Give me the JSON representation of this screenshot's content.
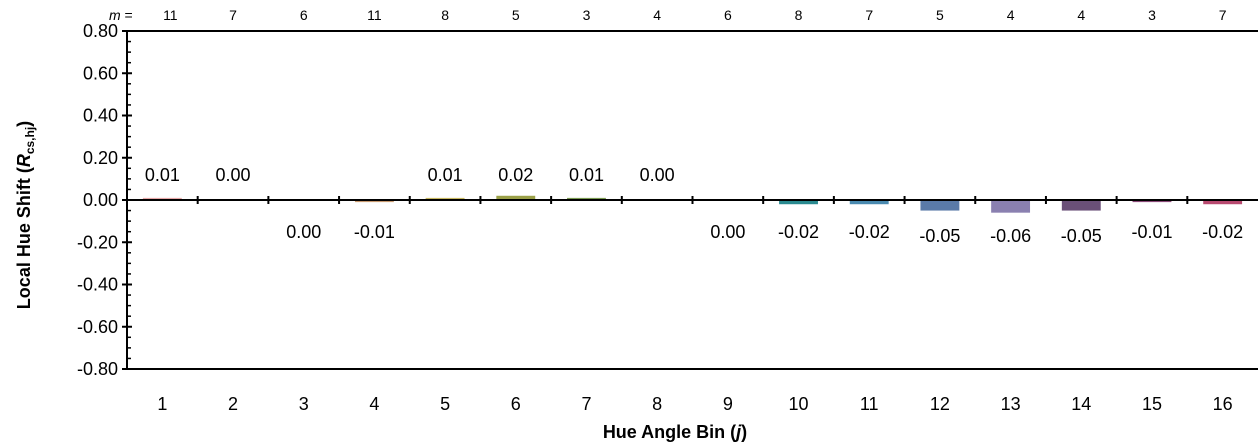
{
  "chart_data": {
    "type": "bar",
    "title": "",
    "xlabel": "Hue Angle Bin (j)",
    "xlabel_parts": {
      "main": "Hue Angle Bin (",
      "var": "j",
      "end": ")"
    },
    "ylabel": "Local Hue Shift (Rcs,hj)",
    "ylabel_parts": {
      "main": "Local Hue Shift (",
      "var": "R",
      "sub": "cs,hj",
      "end": ")"
    },
    "ylim": [
      -0.8,
      0.8
    ],
    "y_ticks": [
      "0.80",
      "0.60",
      "0.40",
      "0.20",
      "0.00",
      "-0.20",
      "-0.40",
      "-0.60",
      "-0.80"
    ],
    "y_tick_values": [
      0.8,
      0.6,
      0.4,
      0.2,
      0.0,
      -0.2,
      -0.4,
      -0.6,
      -0.8
    ],
    "grid": false,
    "legend": "none",
    "categories": [
      "1",
      "2",
      "3",
      "4",
      "5",
      "6",
      "7",
      "8",
      "9",
      "10",
      "11",
      "12",
      "13",
      "14",
      "15",
      "16"
    ],
    "values": [
      0.01,
      0.0,
      0.0,
      -0.01,
      0.01,
      0.02,
      0.01,
      0.0,
      0.0,
      -0.02,
      -0.02,
      -0.05,
      -0.06,
      -0.05,
      -0.01,
      -0.02
    ],
    "data_labels": [
      "0.01",
      "0.00",
      "0.00",
      "-0.01",
      "0.01",
      "0.02",
      "0.01",
      "0.00",
      "0.00",
      "-0.02",
      "-0.02",
      "-0.05",
      "-0.06",
      "-0.05",
      "-0.01",
      "-0.02"
    ],
    "m_prefix": "m = ",
    "m_counts": [
      "11",
      "7",
      "6",
      "11",
      "8",
      "5",
      "3",
      "4",
      "6",
      "8",
      "7",
      "5",
      "4",
      "4",
      "3",
      "7"
    ],
    "colors": [
      "#e8a8a8",
      "#e8b890",
      "#d8b888",
      "#c89a70",
      "#c8b860",
      "#9aa048",
      "#7a9a50",
      "#4a8a5a",
      "#3a8a7a",
      "#2a8a90",
      "#4a8ab0",
      "#5a7aa8",
      "#8a80b0",
      "#6a5078",
      "#8a4a78",
      "#b84a70"
    ]
  }
}
